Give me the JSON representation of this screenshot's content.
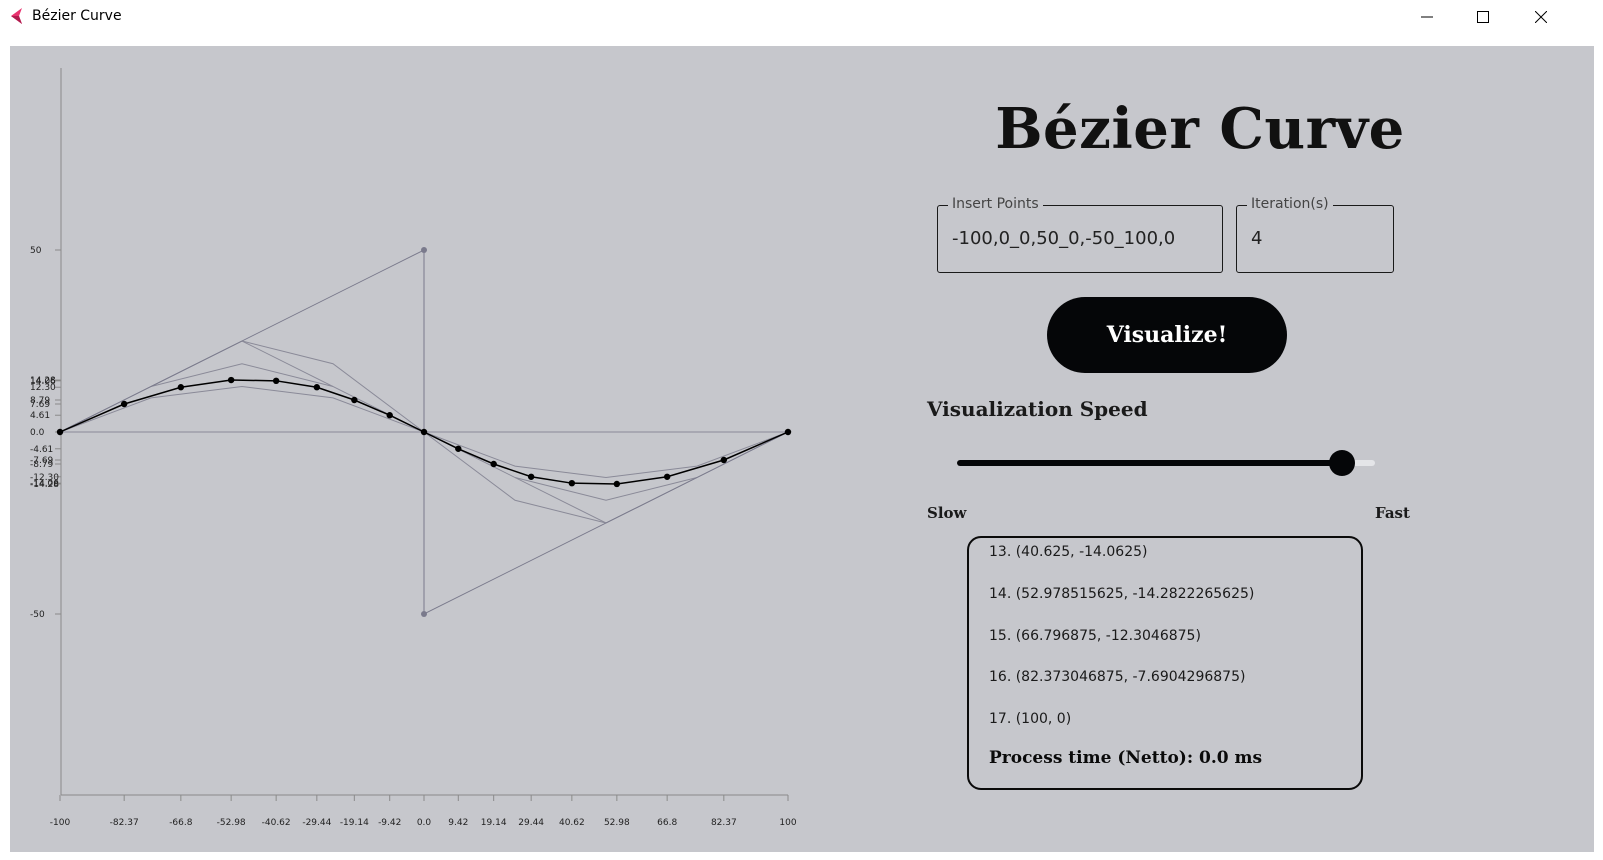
{
  "window": {
    "title": "Bézier Curve",
    "icon": "app-logo-icon",
    "controls": [
      "minimize-icon",
      "maximize-icon",
      "close-icon"
    ]
  },
  "app": {
    "heading": "Bézier Curve",
    "points_field": {
      "label": "Insert Points",
      "value": "-100,0_0,50_0,-50_100,0"
    },
    "iterations_field": {
      "label": "Iteration(s)",
      "value": "4"
    },
    "visualize_label": "Visualize!",
    "speed": {
      "title": "Visualization Speed",
      "min_label": "Slow",
      "max_label": "Fast",
      "value_fraction": 0.92
    },
    "output": {
      "lines": [
        "13. (40.625, -14.0625)",
        "14. (52.978515625, -14.2822265625)",
        "15. (66.796875, -12.3046875)",
        "16. (82.373046875, -7.6904296875)",
        "17. (100, 0)"
      ],
      "process_time": "Process time (Netto): 0.0 ms"
    }
  },
  "chart_data": {
    "type": "line",
    "title": "",
    "xlabel": "",
    "ylabel": "",
    "xlim": [
      -100,
      100
    ],
    "ylim": [
      -100,
      100
    ],
    "grid": false,
    "control_points": [
      [
        -100,
        0
      ],
      [
        0,
        50
      ],
      [
        0,
        -50
      ],
      [
        100,
        0
      ]
    ],
    "x_tick_labels": [
      "-100",
      "-82.37",
      "-66.8",
      "-52.98",
      "-40.62",
      "-29.44",
      "-19.14",
      "-9.42",
      "0.0",
      "9.42",
      "19.14",
      "29.44",
      "40.62",
      "52.98",
      "66.8",
      "82.37",
      "100"
    ],
    "x_tick_values": [
      -100,
      -82.37,
      -66.8,
      -52.98,
      -40.62,
      -29.44,
      -19.14,
      -9.42,
      0,
      9.42,
      19.14,
      29.44,
      40.62,
      52.98,
      66.8,
      82.37,
      100
    ],
    "y_tick_labels": [
      "50",
      "14.28",
      "14.06",
      "12.30",
      "8.79",
      "7.69",
      "4.61",
      "0.0",
      "-4.61",
      "-7.69",
      "-8.79",
      "-12.30",
      "-14.06",
      "-14.28",
      "-50"
    ],
    "y_tick_values": [
      50,
      14.28,
      14.06,
      12.3,
      8.79,
      7.69,
      4.61,
      0,
      -4.61,
      -7.69,
      -8.79,
      -12.3,
      -14.06,
      -14.28,
      -50
    ],
    "curve_points": [
      [
        -100,
        0
      ],
      [
        -82.37,
        7.69
      ],
      [
        -66.8,
        12.3
      ],
      [
        -52.98,
        14.28
      ],
      [
        -40.62,
        14.06
      ],
      [
        -29.44,
        12.3
      ],
      [
        -19.14,
        8.79
      ],
      [
        -9.42,
        4.61
      ],
      [
        0,
        0
      ],
      [
        9.42,
        -4.61
      ],
      [
        19.14,
        -8.79
      ],
      [
        29.44,
        -12.3
      ],
      [
        40.62,
        -14.06
      ],
      [
        52.98,
        -14.28
      ],
      [
        66.8,
        -12.3
      ],
      [
        82.37,
        -7.69
      ],
      [
        100,
        0
      ]
    ],
    "construction_lines": [
      [
        [
          -100,
          0
        ],
        [
          -50,
          25
        ],
        [
          0,
          0
        ],
        [
          50,
          -25
        ],
        [
          100,
          0
        ]
      ],
      [
        [
          -50,
          25
        ],
        [
          -25,
          18.75
        ],
        [
          0,
          0
        ]
      ],
      [
        [
          0,
          0
        ],
        [
          25,
          -18.75
        ],
        [
          50,
          -25
        ]
      ],
      [
        [
          -75,
          12.5
        ],
        [
          -50,
          18.75
        ],
        [
          -25,
          12.5
        ]
      ],
      [
        [
          25,
          -12.5
        ],
        [
          50,
          -18.75
        ],
        [
          75,
          -12.5
        ]
      ],
      [
        [
          -100,
          0
        ],
        [
          -75,
          9.375
        ],
        [
          -50,
          12.5
        ],
        [
          -25,
          9.375
        ],
        [
          0,
          0
        ]
      ],
      [
        [
          0,
          0
        ],
        [
          25,
          -9.375
        ],
        [
          50,
          -12.5
        ],
        [
          75,
          -9.375
        ],
        [
          100,
          0
        ]
      ],
      [
        [
          -100,
          0
        ],
        [
          100,
          0
        ]
      ]
    ],
    "colors": {
      "curve": "#000000",
      "control": "#7a7a8c",
      "construction": "#8a8a98",
      "axis": "#8a8a8a"
    }
  }
}
